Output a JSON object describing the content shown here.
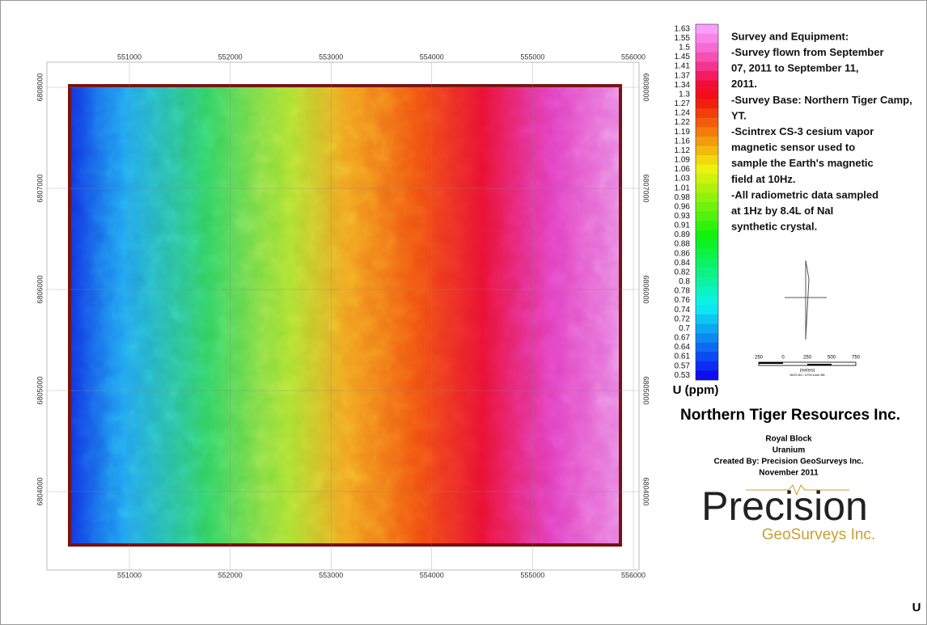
{
  "map": {
    "x_ticks": [
      551000,
      552000,
      553000,
      554000,
      555000,
      556000
    ],
    "y_ticks": [
      6808000,
      6807000,
      6806000,
      6805000,
      6804000
    ]
  },
  "legend": {
    "values": [
      1.63,
      1.55,
      1.5,
      1.45,
      1.41,
      1.37,
      1.34,
      1.3,
      1.27,
      1.24,
      1.22,
      1.19,
      1.16,
      1.12,
      1.09,
      1.06,
      1.03,
      1.01,
      0.98,
      0.96,
      0.93,
      0.91,
      0.89,
      0.88,
      0.86,
      0.84,
      0.82,
      0.8,
      0.78,
      0.76,
      0.74,
      0.72,
      0.7,
      0.67,
      0.64,
      0.61,
      0.57,
      0.53
    ],
    "title": "U (ppm)"
  },
  "notes": [
    "Survey and Equipment:",
    "-Survey flown from September",
    "07, 2011 to September 11,",
    "2011.",
    "-Survey Base: Northern Tiger Camp,",
    "YT.",
    "-Scintrex CS-3 cesium vapor",
    "magnetic sensor used to",
    "sample the Earth's magnetic",
    "field at 10Hz.",
    "-All radiometric data sampled",
    "at 1Hz by 8.4L of NaI",
    "synthetic crystal."
  ],
  "scale_bar": {
    "labels": [
      "250",
      "0",
      "250",
      "500",
      "750"
    ],
    "unit": "(meters)",
    "projection": "WGS 84 / UTM zone 8N"
  },
  "company": "Northern Tiger Resources Inc.",
  "info": [
    "Royal Block",
    "Uranium",
    "Created By: Precision GeoSurveys Inc.",
    "November 2011"
  ],
  "logo": {
    "name": "Precision",
    "sub": "GeoSurveys Inc."
  },
  "corner": "U"
}
